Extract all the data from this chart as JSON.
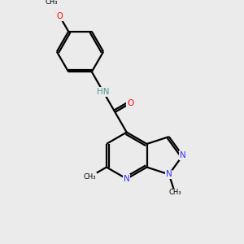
{
  "bg_color": "#ebebeb",
  "bond_color": "#000000",
  "N_color": "#3333ff",
  "O_color": "#ff0000",
  "NH_color": "#4a9999",
  "lw": 1.6,
  "fs": 7.5,
  "dpi": 100,
  "figsize": [
    3.0,
    3.0
  ],
  "xlim": [
    0,
    10
  ],
  "ylim": [
    0,
    10
  ]
}
